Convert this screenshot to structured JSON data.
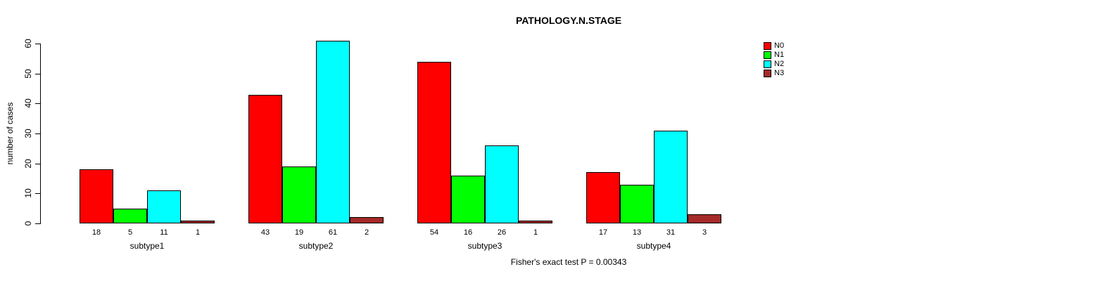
{
  "page": {
    "background": "#ffffff"
  },
  "chart_data": {
    "type": "bar",
    "title": "PATHOLOGY.N.STAGE",
    "ylabel": "number of cases",
    "xlabel": "",
    "categories": [
      "subtype1",
      "subtype2",
      "subtype3",
      "subtype4"
    ],
    "series": [
      {
        "name": "N0",
        "color": "#FF0000",
        "values": [
          18,
          43,
          54,
          17
        ]
      },
      {
        "name": "N1",
        "color": "#00FF00",
        "values": [
          5,
          19,
          16,
          13
        ]
      },
      {
        "name": "N2",
        "color": "#00FFFF",
        "values": [
          11,
          61,
          26,
          31
        ]
      },
      {
        "name": "N3",
        "color": "#A52A2A",
        "values": [
          1,
          2,
          1,
          3
        ]
      }
    ],
    "yticks": [
      0,
      10,
      20,
      30,
      40,
      50,
      60
    ],
    "ylim": [
      0,
      61
    ],
    "grid": false,
    "bar_value_labels_shown": true,
    "legend": {
      "position": "top-right",
      "entries": [
        "N0",
        "N1",
        "N2",
        "N3"
      ]
    },
    "footer": "Fisher's exact test P = 0.00343"
  }
}
